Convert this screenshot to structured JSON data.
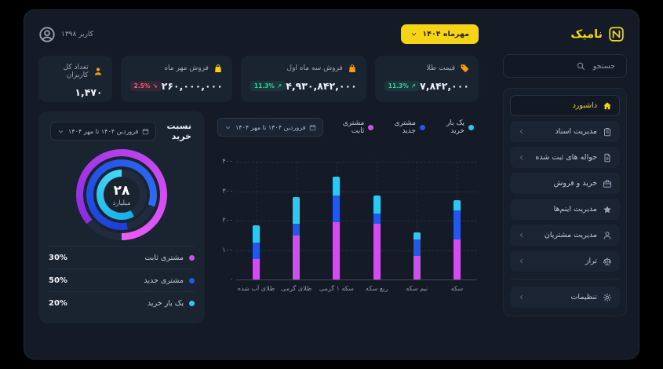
{
  "colors": {
    "accent_yellow": "#f4d414",
    "magenta": "#cf4fee",
    "blue": "#2458e8",
    "cyan": "#2cc8f2",
    "green_badge": "#34d399",
    "red_badge": "#f35d7a",
    "card_bg": "#1a2330",
    "window_bg": "#141b26"
  },
  "sidebar": {
    "logo_text": "نامیک",
    "search_placeholder": "جستجو",
    "menu": [
      {
        "name": "dashboard",
        "label": "داشبورد",
        "icon": "house",
        "chevron": false,
        "active": true
      },
      {
        "name": "documents",
        "label": "مدیریت اسناد",
        "icon": "clipboard",
        "chevron": true,
        "active": false
      },
      {
        "name": "remittances",
        "label": "حواله های ثبت شده",
        "icon": "file",
        "chevron": true,
        "active": false
      },
      {
        "name": "trading",
        "label": "خرید و فروش",
        "icon": "briefcase",
        "chevron": false,
        "active": false
      },
      {
        "name": "items",
        "label": "مدیریت آیتم‌ها",
        "icon": "star",
        "chevron": false,
        "active": false
      },
      {
        "name": "customers",
        "label": "مدیریت مشتریان",
        "icon": "user",
        "chevron": true,
        "active": false
      },
      {
        "name": "balance",
        "label": "تراز",
        "icon": "scale",
        "chevron": true,
        "active": false
      }
    ],
    "settings": {
      "name": "settings",
      "label": "تنظیمات",
      "icon": "gear",
      "chevron": true,
      "active": false
    }
  },
  "topbar": {
    "user_label": "کاربر ۱۳۹۸",
    "period_label": "مهرماه ۱۴۰۴"
  },
  "stat_cards": [
    {
      "name": "gold-price",
      "title": "قیمت طلا",
      "icon": "tag",
      "icon_color": "#f59e0b",
      "value": "۷,۸۴۲,۰۰۰",
      "badge": {
        "text": "11.3%",
        "trend": "up",
        "arrow": "↗"
      }
    },
    {
      "name": "first-quarter-sales",
      "title": "فروش سه ماه اول",
      "icon": "bag",
      "icon_color": "#f59e0b",
      "value": "۴,۹۳۰,۸۴۲,۰۰۰",
      "badge": {
        "text": "11.3%",
        "trend": "up",
        "arrow": "↗"
      }
    },
    {
      "name": "mehr-sales",
      "title": "فروش مهر ماه",
      "icon": "bag",
      "icon_color": "#facc15",
      "value": "۲۶۰,۰۰۰,۰۰۰",
      "badge": {
        "text": "2.5%",
        "trend": "down",
        "arrow": "↘"
      }
    },
    {
      "name": "total-users",
      "title": "تعداد کل کاربران",
      "icon": "person",
      "icon_color": "#f59e0b",
      "value": "۱,۴۷۰",
      "badge": null
    }
  ],
  "purchase_ratio": {
    "title": "نسبت خرید",
    "dropdown_label": "فروردین ۱۴۰۴ تا مهر ۱۴۰۴",
    "center_value": "۲۸",
    "center_unit": "میلیارد",
    "legend": [
      {
        "label": "مشتری ثابت",
        "percent": "30%",
        "color": "#cf4fee"
      },
      {
        "label": "مشتری جدید",
        "percent": "50%",
        "color": "#2458e8"
      },
      {
        "label": "یک بار خرید",
        "percent": "20%",
        "color": "#2cc8f2"
      }
    ],
    "rings": [
      {
        "name": "ring-fixed-customer",
        "color": "#8b2be2",
        "color2": "#ec5cf8",
        "start": 230,
        "sweep": 310
      },
      {
        "name": "ring-new-customer",
        "color": "#1b3fd8",
        "color2": "#2f6cf5",
        "start": 170,
        "sweep": 300
      },
      {
        "name": "ring-one-time",
        "color": "#15aee5",
        "color2": "#45d8f8",
        "start": 150,
        "sweep": 210
      }
    ],
    "track_color": "#202b3d"
  },
  "chart_data": {
    "type": "bar",
    "stacked": true,
    "direction": "rtl",
    "dropdown_label": "فروردین ۱۴۰۴ تا مهر ۱۴۰۴",
    "categories": [
      "سکه",
      "نیم سکه",
      "ربع سکه",
      "سکه ۱ گرمی",
      "طلای گرمی",
      "طلای آب شده"
    ],
    "series": [
      {
        "name": "مشتری ثابت",
        "color": "#cf4fee",
        "values": [
          135,
          80,
          190,
          195,
          150,
          70
        ]
      },
      {
        "name": "مشتری جدید",
        "color": "#2458e8",
        "values": [
          100,
          55,
          35,
          90,
          40,
          55
        ]
      },
      {
        "name": "یک بار خرید",
        "color": "#2cc8f2",
        "values": [
          35,
          25,
          60,
          65,
          90,
          60
        ]
      }
    ],
    "totals": [
      270,
      160,
      285,
      350,
      280,
      185
    ],
    "ylim": [
      0,
      400
    ],
    "y_ticks": [
      "۴۰۰",
      "۳۰۰",
      "۲۰۰",
      "۱۰۰",
      "۰"
    ],
    "grid": true,
    "legend_position": "top-right"
  }
}
